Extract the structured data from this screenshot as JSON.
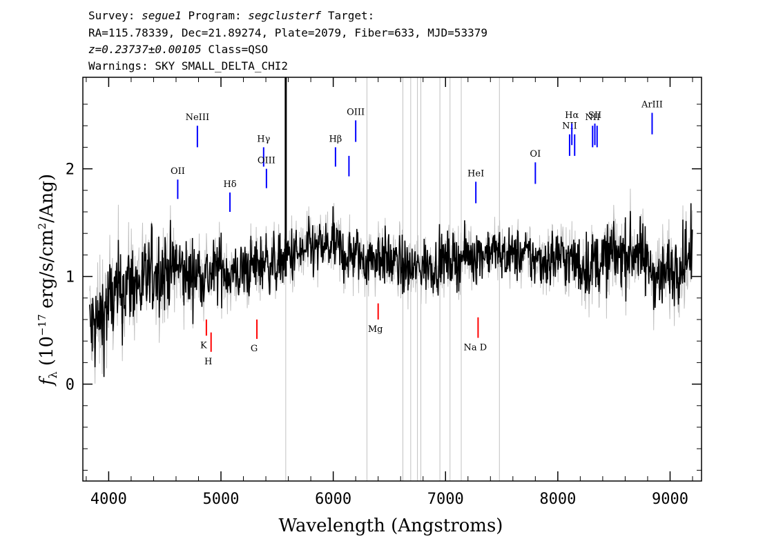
{
  "header": {
    "survey_label": "Survey:",
    "survey": "segue1",
    "program_label": "Program:",
    "program": "segclusterf",
    "target_label": "Target:",
    "line2": "RA=115.78339, Dec=21.89274, Plate=2079, Fiber=633, MJD=53379",
    "redshift": "z=0.23737±0.00105",
    "class": "Class=QSO",
    "warnings": "Warnings: SKY SMALL_DELTA_CHI2"
  },
  "chart_data": {
    "type": "line",
    "title": "",
    "xlabel": "Wavelength (Angstroms)",
    "ylabel": "f_λ (10^-17 erg/s/cm^2/Ang)",
    "xlim": [
      3770,
      9280
    ],
    "ylim": [
      -0.9,
      2.85
    ],
    "x_ticks": [
      4000,
      5000,
      6000,
      7000,
      8000,
      9000
    ],
    "y_ticks": [
      0,
      1,
      2
    ],
    "series": [
      {
        "name": "flux",
        "color": "#000000",
        "x": [
          3830,
          3900,
          4000,
          4100,
          4200,
          4300,
          4400,
          4500,
          4600,
          4700,
          4800,
          4900,
          5000,
          5100,
          5200,
          5300,
          5400,
          5500,
          5600,
          5700,
          5800,
          5900,
          6000,
          6100,
          6200,
          6300,
          6400,
          6500,
          6600,
          6700,
          6800,
          6900,
          7000,
          7100,
          7200,
          7300,
          7400,
          7500,
          7600,
          7700,
          7800,
          7900,
          8000,
          8100,
          8200,
          8300,
          8400,
          8500,
          8600,
          8700,
          8800,
          8900,
          9000,
          9100,
          9200
        ],
        "y": [
          0.5,
          0.55,
          0.75,
          0.85,
          0.95,
          0.9,
          1.05,
          1.05,
          1.1,
          1.0,
          1.05,
          1.0,
          1.1,
          1.0,
          1.05,
          1.1,
          1.15,
          1.1,
          1.2,
          1.2,
          1.25,
          1.25,
          1.3,
          1.2,
          1.2,
          1.15,
          1.2,
          1.15,
          1.1,
          1.05,
          1.1,
          1.1,
          1.15,
          1.15,
          1.2,
          1.2,
          1.25,
          1.2,
          1.2,
          1.2,
          1.15,
          1.15,
          1.2,
          1.15,
          1.1,
          1.1,
          1.15,
          1.2,
          1.2,
          1.25,
          1.1,
          1.0,
          1.05,
          1.15,
          1.2
        ]
      },
      {
        "name": "error",
        "color": "#c0c0c0",
        "x": [
          3830,
          4300,
          4800,
          5500,
          6500,
          7500,
          8500,
          9200
        ],
        "y": [
          0.45,
          0.4,
          0.3,
          0.25,
          0.25,
          0.22,
          0.3,
          0.32
        ]
      }
    ],
    "emission_lines": [
      {
        "label": "OII",
        "x": 4615,
        "y1": 1.72,
        "y2": 1.9
      },
      {
        "label": "NeIII",
        "x": 4790,
        "y1": 2.2,
        "y2": 2.4
      },
      {
        "label": "Hδ",
        "x": 5080,
        "y1": 1.6,
        "y2": 1.78
      },
      {
        "label": "Hγ",
        "x": 5380,
        "y1": 2.02,
        "y2": 2.2
      },
      {
        "label": "OIII",
        "x": 5405,
        "y1": 1.82,
        "y2": 2.0
      },
      {
        "label": "Hβ",
        "x": 6020,
        "y1": 2.02,
        "y2": 2.2
      },
      {
        "label": "",
        "x": 6140,
        "y1": 1.93,
        "y2": 2.12
      },
      {
        "label": "OIII",
        "x": 6200,
        "y1": 2.25,
        "y2": 2.45
      },
      {
        "label": "HeI",
        "x": 7270,
        "y1": 1.68,
        "y2": 1.88
      },
      {
        "label": "OI",
        "x": 7800,
        "y1": 1.86,
        "y2": 2.06
      },
      {
        "label": "NII",
        "x": 8105,
        "y1": 2.12,
        "y2": 2.32
      },
      {
        "label": "Hα",
        "x": 8125,
        "y1": 2.22,
        "y2": 2.42
      },
      {
        "label": "",
        "x": 8150,
        "y1": 2.12,
        "y2": 2.32
      },
      {
        "label": "NII",
        "x": 8310,
        "y1": 2.2,
        "y2": 2.4
      },
      {
        "label": "SII",
        "x": 8330,
        "y1": 2.22,
        "y2": 2.42
      },
      {
        "label": "",
        "x": 8350,
        "y1": 2.2,
        "y2": 2.4
      },
      {
        "label": "ArIII",
        "x": 8840,
        "y1": 2.32,
        "y2": 2.52
      }
    ],
    "absorption_lines": [
      {
        "label": "K",
        "x": 4870,
        "y1": 0.45,
        "y2": 0.6
      },
      {
        "label": "H",
        "x": 4912,
        "y1": 0.3,
        "y2": 0.48
      },
      {
        "label": "G",
        "x": 5320,
        "y1": 0.42,
        "y2": 0.6
      },
      {
        "label": "Mg",
        "x": 6400,
        "y1": 0.6,
        "y2": 0.75
      },
      {
        "label": "Na D",
        "x": 7290,
        "y1": 0.43,
        "y2": 0.62
      }
    ],
    "sky_lines_x": [
      5577,
      6300,
      6620,
      6690,
      6750,
      6780,
      6950,
      7040,
      7140,
      7480
    ],
    "colors": {
      "flux": "#000000",
      "error": "#c0c0c0",
      "emission": "#0000ff",
      "absorption": "#ff0000",
      "sky": "#c0c0c0"
    },
    "grid": false
  }
}
